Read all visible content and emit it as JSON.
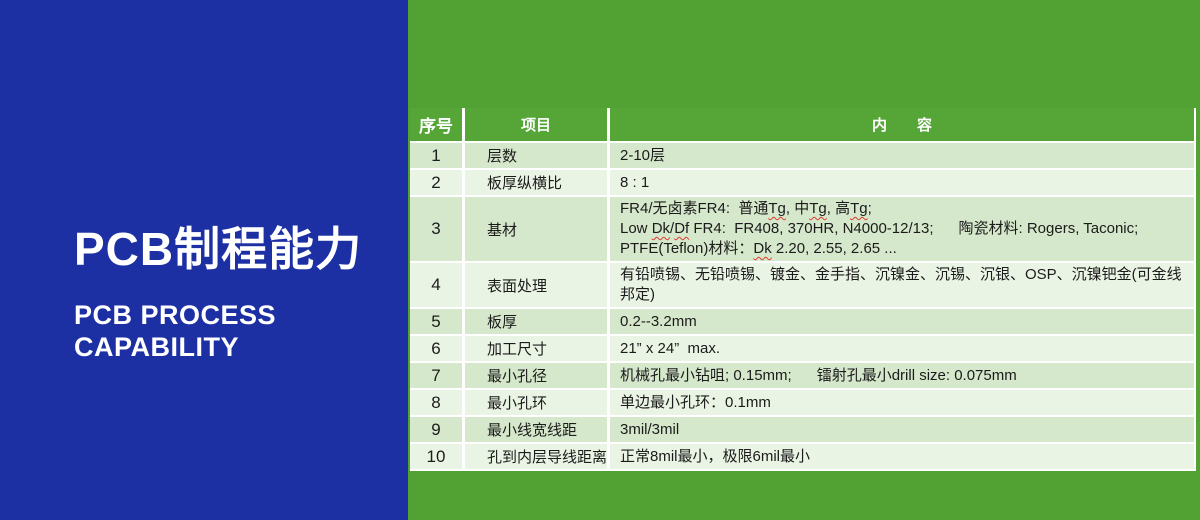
{
  "colors": {
    "blue": "#1c30a4",
    "green": "#52a233",
    "header_green": "#55a537",
    "row_odd": "#d6e8cb",
    "row_even": "#eaf4e4",
    "text_dark": "#1b1b1b",
    "wavy": "#e03a2f"
  },
  "left_panel": {
    "title": "PCB制程能力",
    "subtitle_line1": "PCB PROCESS",
    "subtitle_line2": "CAPABILITY"
  },
  "table": {
    "headers": [
      "序号",
      "项目",
      "内　　容"
    ],
    "rows": [
      {
        "num": "1",
        "item": "层数",
        "content": [
          [
            {
              "t": "2-10层"
            }
          ]
        ]
      },
      {
        "num": "2",
        "item": "板厚纵横比",
        "content": [
          [
            {
              "t": "8 : 1"
            }
          ]
        ]
      },
      {
        "num": "3",
        "item": "基材",
        "content": [
          [
            {
              "t": "FR4/无卤素FR4:  普通"
            },
            {
              "t": "Tg",
              "w": true
            },
            {
              "t": ", 中"
            },
            {
              "t": "Tg",
              "w": true
            },
            {
              "t": ", 高"
            },
            {
              "t": "Tg",
              "w": true
            },
            {
              "t": ";"
            }
          ],
          [
            {
              "t": "Low "
            },
            {
              "t": "Dk",
              "w": true
            },
            {
              "t": "/"
            },
            {
              "t": "Df",
              "w": true
            },
            {
              "t": " FR4:  FR408, 370HR, N4000-12/13;      陶瓷材料: Rogers, Taconic;"
            }
          ],
          [
            {
              "t": "PTFE(Teflon)材料："
            },
            {
              "t": "Dk",
              "w": true
            },
            {
              "t": " 2.20, 2.55, 2.65 ..."
            }
          ]
        ]
      },
      {
        "num": "4",
        "item": "表面处理",
        "content": [
          [
            {
              "t": "有铅喷锡、无铅喷锡、镀金、金手指、沉镍金、沉锡、沉银、OSP、沉镍钯金(可金线邦定)"
            }
          ]
        ]
      },
      {
        "num": "5",
        "item": "板厚",
        "content": [
          [
            {
              "t": "0.2--3.2mm"
            }
          ]
        ]
      },
      {
        "num": "6",
        "item": "加工尺寸",
        "content": [
          [
            {
              "t": "21” x 24”  max."
            }
          ]
        ]
      },
      {
        "num": "7",
        "item": "最小孔径",
        "content": [
          [
            {
              "t": "机械孔最小钻咀; 0.15mm;      镭射孔最小drill size: 0.075mm"
            }
          ]
        ]
      },
      {
        "num": "8",
        "item": "最小孔环",
        "content": [
          [
            {
              "t": "单边最小孔环：0.1mm"
            }
          ]
        ]
      },
      {
        "num": "9",
        "item": "最小线宽线距",
        "content": [
          [
            {
              "t": "3mil/3mil"
            }
          ]
        ]
      },
      {
        "num": "10",
        "item": "孔到内层导线距离",
        "content": [
          [
            {
              "t": "正常8mil最小，极限6mil最小"
            }
          ]
        ]
      }
    ]
  }
}
